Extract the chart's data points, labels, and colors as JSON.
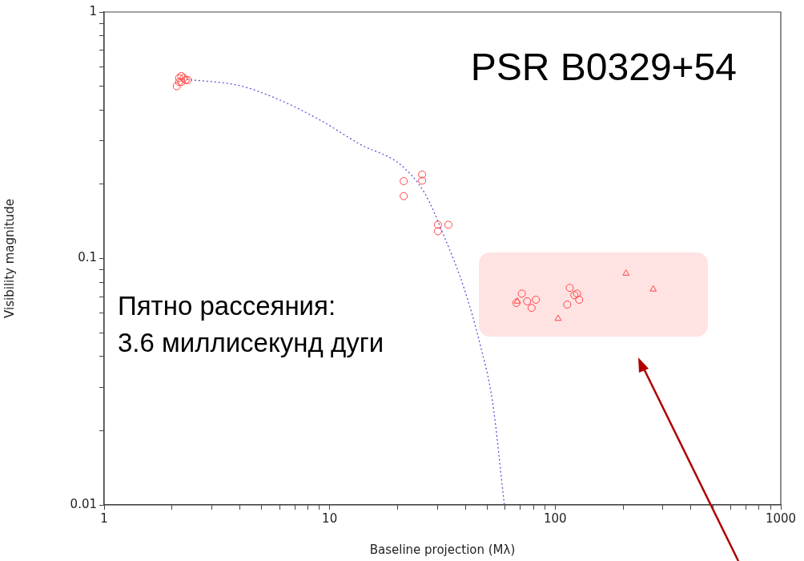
{
  "chart_data": {
    "type": "scatter",
    "title": "PSR B0329+54",
    "xlabel": "Baseline projection (Mλ)",
    "ylabel": "Visibility magnitude",
    "annotations": [
      "Пятно рассеяния:\n3.6 миллисекунд дуги"
    ],
    "log": "xy",
    "xlim": [
      1,
      1000
    ],
    "ylim": [
      0.01,
      1
    ],
    "xticks": [
      1,
      {
        "value": 2,
        "label": null
      },
      {
        "value": 3,
        "label": null
      },
      {
        "value": 4,
        "label": null
      },
      {
        "value": 5,
        "label": null
      },
      {
        "value": 6,
        "label": null
      },
      {
        "value": 7,
        "label": null
      },
      {
        "value": 8,
        "label": null
      },
      {
        "value": 9,
        "label": null
      },
      10,
      {
        "value": 20,
        "label": null
      },
      {
        "value": 30,
        "label": null
      },
      {
        "value": 40,
        "label": null
      },
      {
        "value": 50,
        "label": null
      },
      {
        "value": 60,
        "label": null
      },
      {
        "value": 70,
        "label": null
      },
      {
        "value": 80,
        "label": null
      },
      {
        "value": 90,
        "label": null
      },
      100,
      {
        "value": 200,
        "label": null
      },
      {
        "value": 300,
        "label": null
      },
      {
        "value": 400,
        "label": null
      },
      {
        "value": 500,
        "label": null
      },
      {
        "value": 600,
        "label": null
      },
      {
        "value": 700,
        "label": null
      },
      {
        "value": 800,
        "label": null
      },
      {
        "value": 900,
        "label": null
      },
      1000
    ],
    "yticks": [
      0.01,
      {
        "value": 0.02,
        "label": null
      },
      {
        "value": 0.03,
        "label": null
      },
      {
        "value": 0.04,
        "label": null
      },
      {
        "value": 0.05,
        "label": null
      },
      {
        "value": 0.06,
        "label": null
      },
      {
        "value": 0.07,
        "label": null
      },
      {
        "value": 0.08,
        "label": null
      },
      {
        "value": 0.09,
        "label": null
      },
      0.1,
      {
        "value": 0.2,
        "label": null
      },
      {
        "value": 0.3,
        "label": null
      },
      {
        "value": 0.4,
        "label": null
      },
      {
        "value": 0.5,
        "label": null
      },
      {
        "value": 0.6,
        "label": null
      },
      {
        "value": 0.7,
        "label": null
      },
      {
        "value": 0.8,
        "label": null
      },
      {
        "value": 0.9,
        "label": null
      },
      1
    ],
    "grid": false,
    "legend": false,
    "series": [
      {
        "type": "scatter",
        "marker": "circle",
        "color": "#ff4444",
        "x": [
          2.1,
          2.15,
          2.2,
          2.25,
          2.3,
          2.35,
          2.15,
          2.2,
          21.3,
          21.3,
          25.7,
          25.7,
          30.2,
          30.2,
          33.6,
          67.3,
          71.1,
          75.1,
          78.6,
          82.1,
          116,
          113,
          121.6,
          125,
          127.7
        ],
        "values": [
          0.5,
          0.52,
          0.55,
          0.54,
          0.53,
          0.53,
          0.54,
          0.52,
          0.206,
          0.179,
          0.219,
          0.207,
          0.137,
          0.129,
          0.137,
          0.066,
          0.072,
          0.067,
          0.063,
          0.068,
          0.076,
          0.065,
          0.071,
          0.072,
          0.068
        ]
      },
      {
        "type": "scatter",
        "marker": "triangle",
        "color": "#ff4444",
        "x": [
          67.9,
          103,
          206,
          272
        ],
        "values": [
          0.067,
          0.057,
          0.087,
          0.075
        ]
      },
      {
        "type": "line",
        "marker": "none",
        "line_style": "dotted",
        "color": "#5555dd",
        "x": [
          2.32,
          4.01,
          6.03,
          9.09,
          13.7,
          20.5,
          26.3,
          32.3,
          39.5,
          46.5,
          52.7,
          59.5
        ],
        "values": [
          0.533,
          0.502,
          0.439,
          0.364,
          0.29,
          0.241,
          0.185,
          0.122,
          0.0754,
          0.0446,
          0.0263,
          0.01
        ]
      }
    ]
  }
}
